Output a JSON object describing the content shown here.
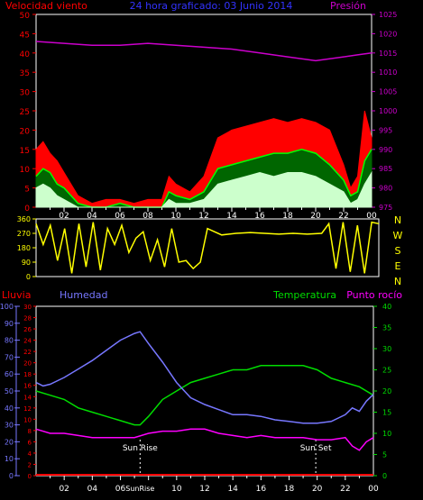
{
  "colors": {
    "wind_avg": "#ffffff",
    "wind_mid": "#00ff00",
    "wind_gust": "#ff0000",
    "pressure": "#cc00cc",
    "direction": "#ffff00",
    "humidity": "#7777ff",
    "temperature": "#00dd00",
    "dewpoint": "#ff00ff",
    "rain": "#ff0000",
    "sun": "#ffffff"
  },
  "chart_data": [
    {
      "type": "line",
      "title": "24 hora graficado: 03 Junio 2014",
      "left_axis_label": "Velocidad viento",
      "right_axis_label": "Presión",
      "x_ticks": [
        "02",
        "04",
        "06",
        "08",
        "10",
        "12",
        "14",
        "16",
        "18",
        "20",
        "22",
        "00"
      ],
      "y_left_ticks": [
        0,
        5,
        10,
        15,
        20,
        25,
        30,
        35,
        40,
        45,
        50
      ],
      "y_left_range": [
        0,
        50
      ],
      "y_right_ticks": [
        975,
        980,
        985,
        990,
        995,
        1000,
        1005,
        1010,
        1015,
        1020,
        1025
      ],
      "y_right_range": [
        975,
        1025
      ],
      "x_range": [
        0,
        24
      ],
      "pressure": {
        "x": [
          0,
          2,
          4,
          6,
          8,
          10,
          12,
          14,
          16,
          18,
          19,
          20,
          21,
          22,
          23,
          24
        ],
        "y": [
          1018,
          1017.5,
          1017,
          1017,
          1017.5,
          1017,
          1016.5,
          1016,
          1015,
          1014,
          1013.5,
          1013,
          1013.5,
          1014,
          1014.5,
          1015
        ]
      },
      "wind_gust": {
        "x": [
          0,
          0.5,
          1,
          1.5,
          2,
          3,
          4,
          5,
          6,
          7,
          8,
          8.5,
          9,
          9.5,
          10,
          11,
          12,
          13,
          14,
          15,
          16,
          17,
          18,
          19,
          20,
          21,
          22,
          22.5,
          23,
          23.5,
          24
        ],
        "y": [
          15,
          17,
          14,
          12,
          9,
          3,
          1,
          2,
          2,
          1,
          2,
          2,
          2,
          8,
          6,
          4,
          8,
          18,
          20,
          21,
          22,
          23,
          22,
          23,
          22,
          20,
          11,
          5,
          8,
          25,
          18
        ]
      },
      "wind_mid": {
        "x": [
          0,
          0.5,
          1,
          1.5,
          2,
          3,
          4,
          5,
          6,
          7,
          8,
          8.5,
          9,
          9.5,
          10,
          11,
          12,
          13,
          14,
          15,
          16,
          17,
          18,
          19,
          20,
          21,
          22,
          22.5,
          23,
          23.5,
          24
        ],
        "y": [
          8,
          10,
          9,
          6,
          5,
          1,
          0,
          0,
          1,
          0,
          0,
          0,
          0,
          4,
          3,
          2,
          4,
          10,
          11,
          12,
          13,
          14,
          14,
          15,
          14,
          11,
          7,
          3,
          4,
          12,
          15
        ]
      },
      "wind_avg": {
        "x": [
          0,
          0.5,
          1,
          1.5,
          2,
          3,
          4,
          5,
          6,
          7,
          8,
          8.5,
          9,
          9.5,
          10,
          11,
          12,
          13,
          14,
          15,
          16,
          17,
          18,
          19,
          20,
          21,
          22,
          22.5,
          23,
          23.5,
          24
        ],
        "y": [
          5,
          6,
          5,
          3,
          2,
          0,
          0,
          0,
          0,
          0,
          0,
          0,
          0,
          2,
          1,
          1,
          2,
          6,
          7,
          8,
          9,
          8,
          9,
          9,
          8,
          6,
          4,
          1,
          2,
          6,
          9
        ]
      }
    },
    {
      "type": "scatter",
      "title": "",
      "y_ticks": [
        0,
        90,
        180,
        270,
        360
      ],
      "y_range": [
        0,
        360
      ],
      "right_labels": [
        "N",
        "W",
        "S",
        "E",
        "N"
      ],
      "x_range": [
        0,
        24
      ],
      "direction": {
        "x": [
          0,
          0.5,
          1,
          1.5,
          2,
          2.5,
          3,
          3.5,
          4,
          4.5,
          5,
          5.5,
          6,
          6.5,
          7,
          7.5,
          8,
          8.5,
          9,
          9.5,
          10,
          10.5,
          11,
          11.5,
          12,
          13,
          14,
          15,
          16,
          17,
          18,
          19,
          20,
          20.5,
          21,
          21.5,
          22,
          22.5,
          23,
          23.5,
          24
        ],
        "y": [
          330,
          200,
          320,
          100,
          300,
          20,
          330,
          60,
          340,
          40,
          300,
          200,
          320,
          150,
          240,
          280,
          100,
          230,
          60,
          300,
          90,
          100,
          50,
          90,
          300,
          260,
          270,
          275,
          270,
          265,
          270,
          265,
          270,
          330,
          50,
          340,
          30,
          320,
          20,
          340,
          330
        ]
      }
    },
    {
      "type": "line",
      "title": "",
      "labels": {
        "rain": "Lluvia",
        "humidity": "Humedad",
        "temperature": "Temperatura",
        "dewpoint": "Punto rocío"
      },
      "humidity_ticks": [
        0,
        10,
        20,
        30,
        40,
        50,
        60,
        70,
        80,
        90,
        100
      ],
      "rain_ticks": [
        0,
        2,
        4,
        6,
        8,
        10,
        12,
        14,
        16,
        18,
        20,
        22,
        24,
        26,
        28,
        30
      ],
      "temp_ticks": [
        0,
        5,
        10,
        15,
        20,
        25,
        30,
        35,
        40
      ],
      "x_ticks": [
        "02",
        "04",
        "06",
        "08",
        "10",
        "12",
        "14",
        "16",
        "18",
        "20",
        "22",
        "00"
      ],
      "x_range": [
        0,
        24
      ],
      "humidity_range": [
        0,
        100
      ],
      "temp_range": [
        0,
        40
      ],
      "sun_rise": {
        "x": 7.4,
        "label": "Sun Rise",
        "tick_label": "SunRise"
      },
      "sun_set": {
        "x": 19.9,
        "label": "Sun Set"
      },
      "humidity": {
        "x": [
          0,
          0.5,
          1,
          2,
          3,
          4,
          5,
          6,
          7,
          7.4,
          8,
          9,
          10,
          11,
          12,
          13,
          14,
          15,
          16,
          17,
          18,
          19,
          20,
          21,
          22,
          22.5,
          23,
          23.5,
          24
        ],
        "y": [
          55,
          53,
          54,
          58,
          63,
          68,
          74,
          80,
          84,
          85,
          78,
          67,
          55,
          46,
          42,
          39,
          36,
          36,
          35,
          33,
          32,
          31,
          31,
          32,
          36,
          40,
          38,
          44,
          48
        ]
      },
      "temperature": {
        "x": [
          0,
          1,
          2,
          3,
          4,
          5,
          6,
          7,
          7.4,
          8,
          9,
          10,
          11,
          12,
          13,
          14,
          15,
          16,
          17,
          18,
          19,
          20,
          21,
          22,
          23,
          24
        ],
        "y": [
          20,
          19,
          18,
          16,
          15,
          14,
          13,
          12,
          12,
          14,
          18,
          20,
          22,
          23,
          24,
          25,
          25,
          26,
          26,
          26,
          26,
          25,
          23,
          22,
          21,
          19
        ]
      },
      "dewpoint": {
        "x": [
          0,
          1,
          2,
          3,
          4,
          5,
          6,
          7,
          8,
          9,
          10,
          11,
          12,
          13,
          14,
          15,
          16,
          17,
          18,
          19,
          20,
          21,
          22,
          22.5,
          23,
          23.5,
          24
        ],
        "y": [
          11,
          10,
          10,
          9.5,
          9,
          9,
          9,
          9,
          10,
          10.5,
          10.5,
          11,
          11,
          10,
          9.5,
          9,
          9.5,
          9,
          9,
          9,
          8.5,
          8.5,
          9,
          7,
          6,
          8,
          9
        ]
      },
      "rain": {
        "x": [
          0,
          24
        ],
        "y": [
          0,
          0
        ]
      }
    }
  ]
}
